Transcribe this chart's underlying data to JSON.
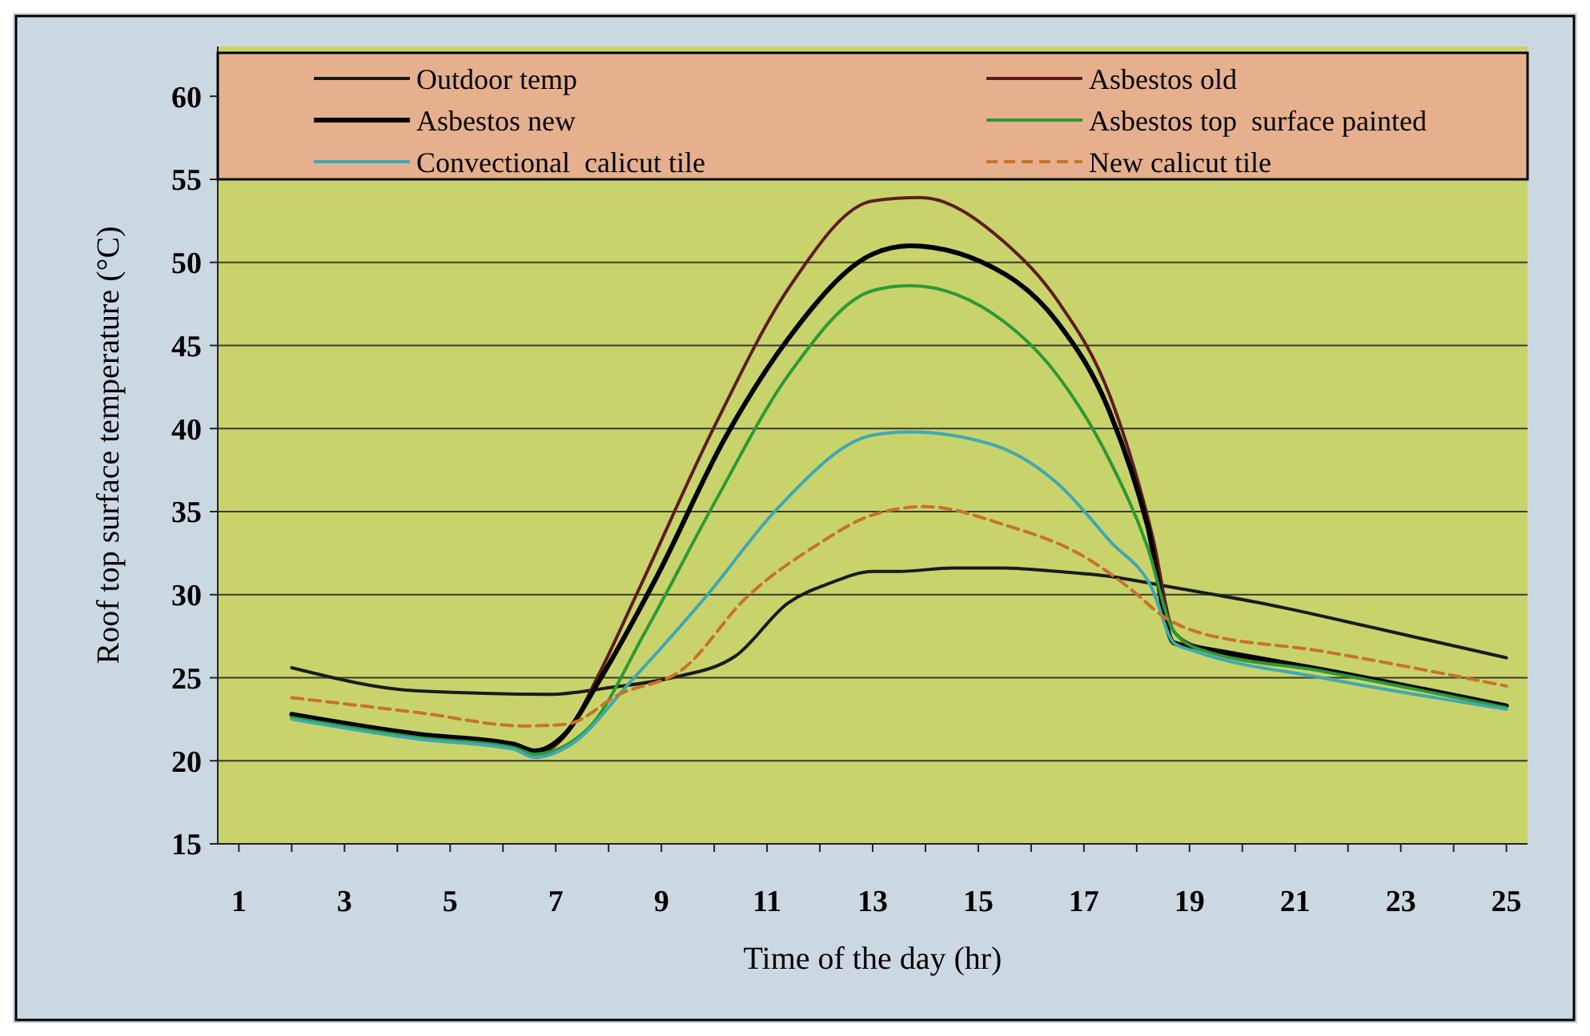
{
  "chart_data": {
    "type": "line",
    "xlabel": "Time of the day (hr)",
    "ylabel": "Roof top surface temperature (°C)",
    "xlim": [
      0.6,
      25.4
    ],
    "xticks": [
      1,
      {
        "value": 2,
        "label": null
      },
      3,
      {
        "value": 4,
        "label": null
      },
      5,
      {
        "value": 6,
        "label": null
      },
      7,
      {
        "value": 8,
        "label": null
      },
      9,
      {
        "value": 10,
        "label": null
      },
      11,
      {
        "value": 12,
        "label": null
      },
      13,
      {
        "value": 14,
        "label": null
      },
      15,
      {
        "value": 16,
        "label": null
      },
      17,
      {
        "value": 18,
        "label": null
      },
      19,
      {
        "value": 20,
        "label": null
      },
      21,
      {
        "value": 22,
        "label": null
      },
      23,
      {
        "value": 24,
        "label": null
      },
      25
    ],
    "ylim": [
      15,
      63
    ],
    "yticks": [
      15,
      20,
      25,
      30,
      35,
      40,
      45,
      50,
      55,
      60
    ],
    "grid": "y",
    "legend": "top",
    "line_style": "solid",
    "marker": "none",
    "series": [
      {
        "name": "Outdoor temp",
        "color": "#1a1a1a",
        "x": [
          2,
          4.4,
          6.9,
          8,
          9.2,
          10.4,
          11.4,
          12.2,
          13,
          13.5,
          14.5,
          15.5,
          16.5,
          17.5,
          18.4,
          20.5,
          22.5,
          25
        ],
        "values": [
          25.6,
          24.2,
          24,
          24.4,
          25,
          26.3,
          29.5,
          30.7,
          31.4,
          31.4,
          31.6,
          31.6,
          31.4,
          31.1,
          30.6,
          29.4,
          28,
          26.2
        ]
      },
      {
        "name": "Asbestos old",
        "color": "#5e1c22",
        "x": [
          2,
          4.4,
          6.2,
          6.6,
          7.2,
          7.8,
          8.6,
          10,
          11.4,
          13,
          13.9,
          15.5,
          16.5,
          17.5,
          18.3,
          18.7,
          19.2,
          21.5,
          25
        ],
        "values": [
          22.7,
          21.5,
          20.9,
          20.4,
          21.6,
          25.1,
          30.5,
          40.1,
          48.4,
          53.7,
          53.9,
          51.2,
          47.7,
          41.9,
          33.5,
          27.8,
          26.8,
          25.5,
          23.3
        ]
      },
      {
        "name": "Asbestos new",
        "color": "#000000",
        "x": [
          2,
          4.4,
          6.2,
          6.6,
          7.2,
          7.8,
          8.9,
          10.2,
          11.4,
          13,
          13.7,
          15.5,
          16.5,
          17.5,
          18.2,
          18.7,
          19.2,
          21.5,
          25
        ],
        "values": [
          22.8,
          21.6,
          21,
          20.6,
          21.7,
          24.7,
          31,
          39.4,
          45.4,
          50.5,
          51,
          49.3,
          46.4,
          40.9,
          34.2,
          27.1,
          26.8,
          25.5,
          23.3
        ]
      },
      {
        "name": "Asbestos top  surface painted",
        "color": "#2c9a35",
        "x": [
          2,
          4.4,
          6.2,
          6.6,
          7.6,
          8.7,
          10,
          11.4,
          13,
          13.7,
          15.5,
          16.5,
          17.5,
          18.2,
          18.7,
          19.2,
          21.5,
          25
        ],
        "values": [
          22.6,
          21.4,
          20.8,
          20.4,
          21.9,
          27.8,
          35.5,
          43.2,
          48.3,
          48.6,
          46.4,
          43.2,
          38,
          32.9,
          27.8,
          26.7,
          25.4,
          23.2
        ]
      },
      {
        "name": "Convectional  calicut tile",
        "color": "#3fa9b0",
        "x": [
          2,
          4.4,
          6.2,
          6.6,
          7.3,
          8.4,
          9.9,
          11.2,
          13,
          13.7,
          15.3,
          16.5,
          17.5,
          18.3,
          18.7,
          19.1,
          21.5,
          25
        ],
        "values": [
          22.5,
          21.3,
          20.7,
          20.2,
          21,
          24.7,
          30.1,
          35.2,
          39.6,
          39.8,
          39,
          36.7,
          33.2,
          30.3,
          27.1,
          26.6,
          25,
          23.1
        ]
      },
      {
        "name": "New calicut tile",
        "color": "#c8722c",
        "line_style": "dashed",
        "x": [
          2,
          4.4,
          6.4,
          7.2,
          8.2,
          9.4,
          10.6,
          11.9,
          13,
          14,
          15.5,
          17,
          17.9,
          18.5,
          19.1,
          21.5,
          25
        ],
        "values": [
          23.8,
          22.9,
          22.1,
          22.2,
          24,
          25.5,
          29.8,
          32.9,
          34.8,
          35.3,
          34.2,
          32.3,
          30.3,
          28.7,
          27.8,
          26.6,
          24.5
        ]
      }
    ]
  }
}
